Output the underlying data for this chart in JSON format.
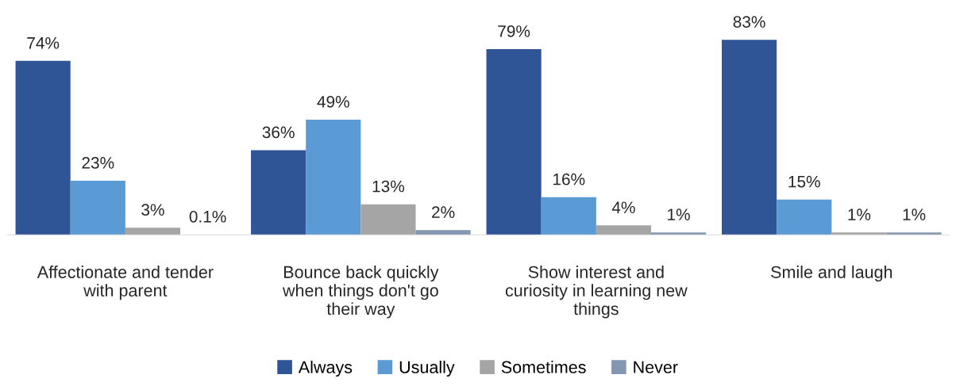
{
  "chart_data": {
    "type": "bar",
    "categories": [
      "Affectionate and tender\nwith parent",
      "Bounce back quickly\nwhen things don't go\ntheir way",
      "Show interest and\ncuriosity in learning new\nthings",
      "Smile and laugh"
    ],
    "series": [
      {
        "name": "Always",
        "color": "#2f5597",
        "values": [
          74,
          36,
          79,
          83
        ],
        "value_labels": [
          "74%",
          "36%",
          "79%",
          "83%"
        ]
      },
      {
        "name": "Usually",
        "color": "#5b9bd5",
        "values": [
          23,
          49,
          16,
          15
        ],
        "value_labels": [
          "23%",
          "49%",
          "16%",
          "15%"
        ]
      },
      {
        "name": "Sometimes",
        "color": "#a5a5a5",
        "values": [
          3,
          13,
          4,
          1
        ],
        "value_labels": [
          "3%",
          "13%",
          "4%",
          "1%"
        ]
      },
      {
        "name": "Never",
        "color": "#8497b0",
        "values": [
          0.1,
          2,
          1,
          1
        ],
        "value_labels": [
          "0.1%",
          "2%",
          "1%",
          "1%"
        ]
      }
    ],
    "tick_labels": "x",
    "grid": false,
    "legend": "bottom"
  }
}
